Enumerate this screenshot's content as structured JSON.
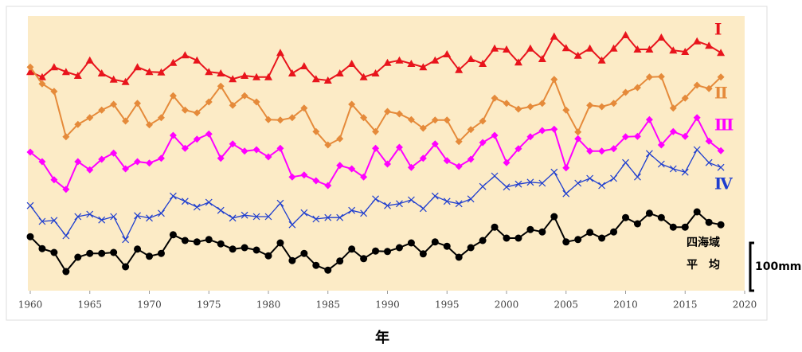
{
  "chart_data": {
    "type": "line",
    "xlabel": "年",
    "xlim": [
      1960,
      2020
    ],
    "xticks": [
      1960,
      1965,
      1970,
      1975,
      1980,
      1985,
      1990,
      1995,
      2000,
      2005,
      2010,
      2015,
      2020
    ],
    "ylim": [
      0,
      575
    ],
    "x": [
      1960,
      1961,
      1962,
      1963,
      1964,
      1965,
      1966,
      1967,
      1968,
      1969,
      1970,
      1971,
      1972,
      1973,
      1974,
      1975,
      1976,
      1977,
      1978,
      1979,
      1980,
      1981,
      1982,
      1983,
      1984,
      1985,
      1986,
      1987,
      1988,
      1989,
      1990,
      1991,
      1992,
      1993,
      1994,
      1995,
      1996,
      1997,
      1998,
      1999,
      2000,
      2001,
      2002,
      2003,
      2004,
      2005,
      2006,
      2007,
      2008,
      2009,
      2010,
      2011,
      2012,
      2013,
      2014,
      2015,
      2016,
      2017,
      2018
    ],
    "scale_bar": {
      "value": 100,
      "label": "100mm"
    },
    "series": [
      {
        "name": "Ⅰ",
        "color": "#e8141c",
        "marker": "triangle",
        "values": [
          458,
          447,
          468,
          458,
          450,
          482,
          455,
          442,
          437,
          468,
          458,
          457,
          477,
          493,
          482,
          458,
          455,
          443,
          450,
          447,
          447,
          498,
          455,
          470,
          443,
          440,
          455,
          475,
          447,
          455,
          477,
          482,
          475,
          468,
          482,
          495,
          462,
          485,
          475,
          507,
          505,
          478,
          507,
          485,
          532,
          508,
          492,
          507,
          482,
          507,
          535,
          505,
          505,
          530,
          503,
          500,
          522,
          513,
          498
        ]
      },
      {
        "name": "Ⅱ",
        "color": "#e58a3a",
        "marker": "diamond",
        "values": [
          468,
          433,
          417,
          322,
          348,
          362,
          378,
          390,
          355,
          392,
          347,
          362,
          408,
          378,
          372,
          395,
          428,
          388,
          408,
          395,
          358,
          357,
          362,
          382,
          333,
          305,
          318,
          390,
          362,
          333,
          375,
          370,
          358,
          340,
          357,
          357,
          312,
          337,
          355,
          403,
          392,
          380,
          385,
          392,
          442,
          378,
          332,
          388,
          385,
          392,
          415,
          425,
          447,
          448,
          382,
          403,
          430,
          423,
          447
        ]
      },
      {
        "name": "Ⅲ",
        "color": "#ff00ff",
        "marker": "diamond",
        "values": [
          290,
          270,
          232,
          212,
          270,
          253,
          275,
          288,
          255,
          270,
          267,
          277,
          325,
          298,
          317,
          328,
          277,
          307,
          292,
          295,
          280,
          298,
          238,
          242,
          230,
          220,
          262,
          255,
          238,
          298,
          265,
          300,
          258,
          277,
          307,
          272,
          260,
          275,
          310,
          325,
          268,
          297,
          322,
          335,
          338,
          257,
          318,
          292,
          292,
          297,
          322,
          323,
          358,
          305,
          333,
          323,
          362,
          313,
          293
        ]
      },
      {
        "name": "Ⅳ",
        "color": "#1f3ecf",
        "marker": "cross",
        "values": [
          178,
          145,
          147,
          115,
          155,
          160,
          148,
          155,
          107,
          157,
          152,
          162,
          198,
          187,
          175,
          185,
          168,
          152,
          158,
          155,
          155,
          183,
          138,
          163,
          150,
          153,
          153,
          168,
          162,
          192,
          178,
          182,
          190,
          172,
          198,
          187,
          182,
          192,
          218,
          240,
          217,
          223,
          227,
          225,
          248,
          203,
          225,
          235,
          220,
          235,
          268,
          238,
          287,
          265,
          255,
          248,
          295,
          268,
          258
        ]
      },
      {
        "name": "四海域\n平　均",
        "color": "#000000",
        "marker": "circle",
        "values": [
          113,
          88,
          80,
          40,
          70,
          78,
          78,
          80,
          50,
          87,
          72,
          78,
          117,
          105,
          102,
          107,
          98,
          87,
          90,
          85,
          73,
          100,
          63,
          78,
          53,
          43,
          62,
          87,
          67,
          83,
          82,
          90,
          100,
          77,
          102,
          93,
          70,
          90,
          105,
          133,
          110,
          110,
          128,
          123,
          155,
          102,
          107,
          122,
          110,
          123,
          153,
          140,
          162,
          153,
          133,
          133,
          165,
          143,
          138
        ]
      }
    ]
  }
}
